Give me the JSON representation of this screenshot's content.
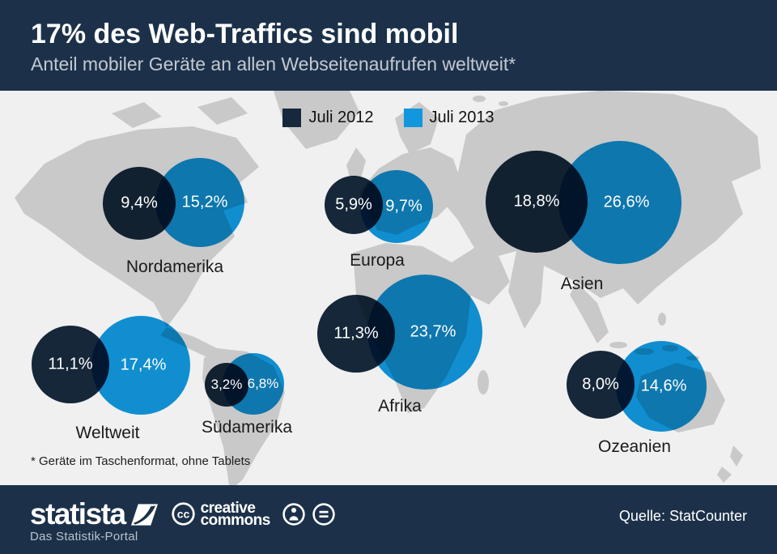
{
  "header": {
    "title": "17% des Web-Traffics sind mobil",
    "subtitle": "Anteil mobiler Geräte an allen Webseitenaufrufen weltweit*"
  },
  "legend": {
    "items": [
      {
        "label": "Juli 2012",
        "color": "#16293c"
      },
      {
        "label": "Juli 2013",
        "color": "#1197dd"
      }
    ]
  },
  "chart_data": {
    "type": "bubble",
    "title": "17% des Web-Traffics sind mobil",
    "subtitle": "Anteil mobiler Geräte an allen Webseitenaufrufen weltweit*",
    "unit": "%",
    "series_names": [
      "Juli 2012",
      "Juli 2013"
    ],
    "colors": {
      "juli_2012": "#16293c",
      "juli_2013": "#1197dd"
    },
    "legend_position": "top-center",
    "background": "world-map",
    "bubble_scaling": "area proportional to value",
    "regions": [
      {
        "name": "Nordamerika",
        "values": [
          9.4,
          15.2
        ],
        "labels": [
          "9,4%",
          "15,2%"
        ]
      },
      {
        "name": "Europa",
        "values": [
          5.9,
          9.7
        ],
        "labels": [
          "5,9%",
          "9,7%"
        ]
      },
      {
        "name": "Asien",
        "values": [
          18.8,
          26.6
        ],
        "labels": [
          "18,8%",
          "26,6%"
        ]
      },
      {
        "name": "Weltweit",
        "values": [
          11.1,
          17.4
        ],
        "labels": [
          "11,1%",
          "17,4%"
        ]
      },
      {
        "name": "Südamerika",
        "values": [
          3.2,
          6.8
        ],
        "labels": [
          "3,2%",
          "6,8%"
        ]
      },
      {
        "name": "Afrika",
        "values": [
          11.3,
          23.7
        ],
        "labels": [
          "11,3%",
          "23,7%"
        ]
      },
      {
        "name": "Ozeanien",
        "values": [
          8.0,
          14.6
        ],
        "labels": [
          "8,0%",
          "14,6%"
        ]
      }
    ]
  },
  "footnote": "* Geräte im Taschenformat, ohne Tablets",
  "footer": {
    "brand": "statista",
    "brand_subtitle": "Das Statistik-Portal",
    "cc_abbrev": "cc",
    "cc_line1": "creative",
    "cc_line2": "commons",
    "source": "Quelle: StatCounter"
  }
}
